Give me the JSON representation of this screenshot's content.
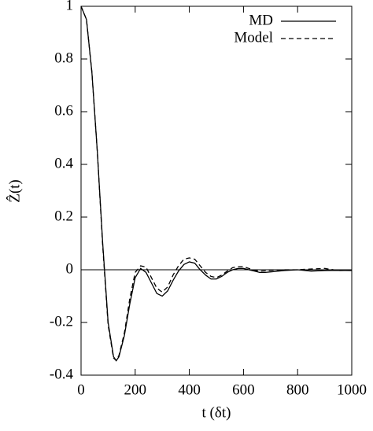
{
  "chart_data": {
    "type": "line",
    "x": [
      0,
      20,
      40,
      60,
      80,
      100,
      120,
      130,
      140,
      160,
      180,
      200,
      220,
      240,
      260,
      280,
      300,
      320,
      340,
      360,
      380,
      400,
      420,
      440,
      460,
      480,
      500,
      520,
      540,
      560,
      580,
      600,
      620,
      640,
      660,
      680,
      700,
      750,
      800,
      850,
      900,
      950,
      1000
    ],
    "series": [
      {
        "name": "MD",
        "color": "#000000",
        "dash": "solid",
        "values": [
          1,
          0.95,
          0.75,
          0.45,
          0.1,
          -0.2,
          -0.33,
          -0.345,
          -0.33,
          -0.25,
          -0.13,
          -0.03,
          0.005,
          -0.01,
          -0.05,
          -0.09,
          -0.1,
          -0.08,
          -0.04,
          -0.005,
          0.02,
          0.03,
          0.025,
          0.0,
          -0.02,
          -0.035,
          -0.035,
          -0.025,
          -0.01,
          0.0,
          0.005,
          0.005,
          0.0,
          -0.005,
          -0.01,
          -0.01,
          -0.008,
          -0.003,
          0.0,
          -0.005,
          -0.003,
          -0.002,
          -0.003
        ]
      },
      {
        "name": "Model",
        "color": "#000000",
        "dash": "dashed",
        "values": [
          1,
          0.95,
          0.75,
          0.45,
          0.09,
          -0.21,
          -0.335,
          -0.345,
          -0.325,
          -0.24,
          -0.11,
          -0.01,
          0.015,
          0.01,
          -0.03,
          -0.07,
          -0.085,
          -0.065,
          -0.02,
          0.015,
          0.04,
          0.045,
          0.04,
          0.015,
          -0.01,
          -0.025,
          -0.03,
          -0.02,
          -0.005,
          0.008,
          0.012,
          0.012,
          0.005,
          -0.002,
          -0.005,
          -0.004,
          -0.002,
          0.0,
          0.0,
          0.003,
          0.005,
          -0.003,
          -0.002
        ]
      }
    ],
    "xlim": [
      0,
      1000
    ],
    "xticks": [
      0,
      200,
      400,
      600,
      800,
      1000
    ],
    "ylim": [
      -0.4,
      1
    ],
    "yticks": [
      -0.4,
      -0.2,
      0,
      0.2,
      0.4,
      0.6,
      0.8,
      1
    ],
    "hlines": [
      0
    ],
    "xlabel": "t   (δt)",
    "ylabel": "Ẑ(t)",
    "legend": "top-right"
  }
}
